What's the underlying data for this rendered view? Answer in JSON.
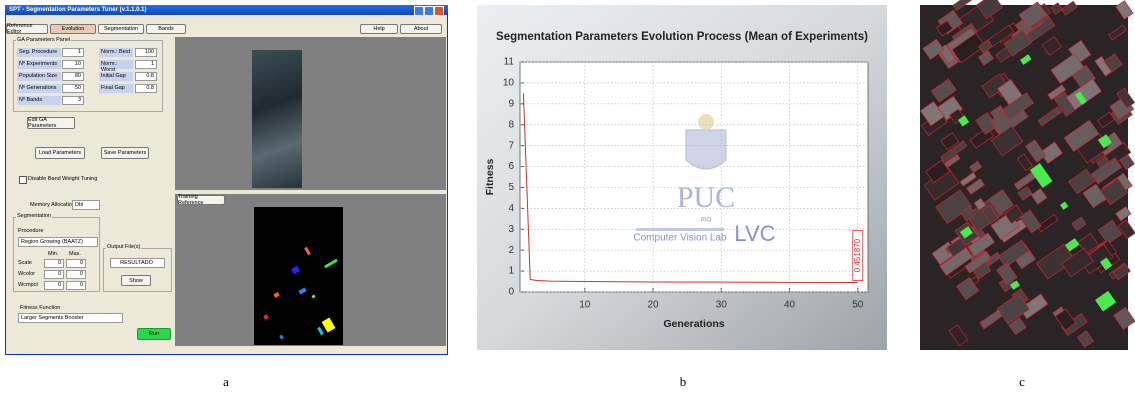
{
  "ui": {
    "window_title": "SPT - Segmentation Parameters Tuner (v.1.1.0.1)",
    "tabs": [
      "Reference Editor",
      "Evolution",
      "Segmentation",
      "Bands"
    ],
    "menu_buttons": [
      "Help",
      "About"
    ],
    "ga_panel": {
      "title": "GA Parameters Panel",
      "params_left": [
        {
          "label": "Seg. Procedure",
          "value": 1
        },
        {
          "label": "Nº Experiments",
          "value": 10
        },
        {
          "label": "Population Size",
          "value": 80
        },
        {
          "label": "Nº Generations",
          "value": 50
        },
        {
          "label": "Nº Bands",
          "value": 3
        }
      ],
      "params_right": [
        {
          "label": "Norm.: Best",
          "value": 100
        },
        {
          "label": "Norm.: Worst",
          "value": 1
        },
        {
          "label": "Initial Gap",
          "value": 0.8
        },
        {
          "label": "Final Gap",
          "value": 0.8
        }
      ]
    },
    "edit_button": "Edit GA Parameters",
    "load_button": "Load Parameters",
    "save_button": "Save Parameters",
    "checkbox": "Disable Band Weight Tuning",
    "memory": {
      "label": "Memory Allocation",
      "value": "Dbl"
    },
    "segmentation": {
      "title": "Segmentation",
      "procedure_label": "Procedure",
      "procedure": "Region Growing (BAATZ)",
      "columns": [
        "Min.",
        "Max."
      ],
      "rows": [
        {
          "label": "Scale",
          "min": 0,
          "max": 0
        },
        {
          "label": "Wcolor",
          "min": 0,
          "max": 0
        },
        {
          "label": "Wcmpct",
          "min": 0,
          "max": 0
        }
      ]
    },
    "output": {
      "title": "Output File(s)",
      "value": "RESULTADO",
      "button": "Show"
    },
    "fitness": {
      "label": "Fitness Function",
      "value": "Larger Segments Booster"
    },
    "run_button": "Run",
    "training_button": "Training Reference"
  },
  "chart_data": {
    "type": "line",
    "title": "Segmentation Parameters Evolution Process (Mean of Experiments)",
    "x_label": "Generations",
    "y_label": "Fitness",
    "x": [
      1,
      2,
      3,
      5,
      10,
      20,
      30,
      40,
      50
    ],
    "series": [
      {
        "name": "Fitness",
        "color": "#c0392b",
        "values": [
          9.5,
          0.6,
          0.55,
          0.52,
          0.5,
          0.48,
          0.47,
          0.46,
          0.45187
        ]
      }
    ],
    "xlim": [
      0.5,
      51.5
    ],
    "ylim": [
      0,
      11
    ],
    "xticks": [
      10,
      20,
      30,
      40,
      50
    ],
    "yticks": [
      0,
      1,
      2,
      3,
      4,
      5,
      6,
      7,
      8,
      9,
      10,
      11
    ],
    "grid": true,
    "annotations": [
      {
        "text": "0.451870",
        "x": 50,
        "y": 0.45187
      }
    ],
    "logo": {
      "text": "PUC",
      "subtext": "RIO",
      "lab": "Computer Vision Lab",
      "short": "LVC"
    }
  },
  "captions": [
    "a",
    "b",
    "c"
  ]
}
